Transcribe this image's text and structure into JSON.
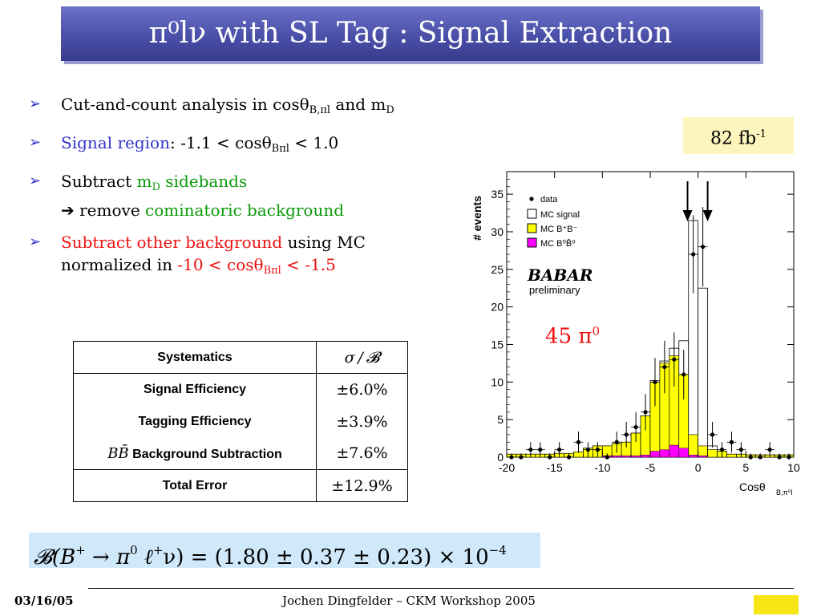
{
  "title": "π⁰lν with SL Tag :  Signal Extraction",
  "bullets": {
    "b1": {
      "t1": "Cut-and-count analysis in cosθ",
      "s1": "B,πl",
      "t2": " and m",
      "s2": "D"
    },
    "b2": {
      "blue": "Signal region",
      "t1": ": -1.1 < cosθ",
      "s1": "Bπl",
      "t2": " < 1.0"
    },
    "b3": {
      "t1": "Subtract ",
      "g1": "m",
      "s1": "D",
      "g2": " sidebands",
      "t2": "➔ remove ",
      "g3": "cominatoric background"
    },
    "b4": {
      "r1": "Subtract other background",
      "t1": " using MC",
      "t2": "normalized in ",
      "r2": "-10 < cosθ",
      "s1": "Bπl",
      "r3": " < -1.5"
    }
  },
  "luminosity": {
    "value": "82 fb",
    "exp": "-1"
  },
  "systematics": {
    "header_label": "Systematics",
    "header_value": "σ / ",
    "header_b": "𝓑",
    "rows": [
      {
        "label": "Signal Efficiency",
        "value": "±6.0%"
      },
      {
        "label": "Tagging Efficiency",
        "value": "±3.9%"
      },
      {
        "label_prefix": "BB̄",
        "label": " Background Subtraction",
        "value": "±7.6%"
      }
    ],
    "total_label": "Total Error",
    "total_value": "±12.9%"
  },
  "formula": {
    "lhs": "𝓑(B",
    "plus1": "+",
    "arrow": " → π",
    "zero": "0",
    "ell": " ℓ",
    "plus2": "+",
    "rest": "ν) = (1.80 ± 0.37 ± 0.23) × 10",
    "exp": "−4"
  },
  "footer": {
    "date": "03/16/05",
    "center": "Jochen Dingfelder –  CKM Workshop 2005"
  },
  "annotation": {
    "count": "45 π",
    "sup": "0"
  },
  "chart_data": {
    "type": "bar",
    "ylabel": "# events",
    "xlabel": "Cosθ",
    "xlabel_sub": "B,π⁰l",
    "xlim": [
      -20,
      10
    ],
    "ylim": [
      0,
      38
    ],
    "xticks": [
      -20,
      -15,
      -10,
      -5,
      0,
      5,
      10
    ],
    "yticks": [
      0,
      5,
      10,
      15,
      20,
      25,
      30,
      35
    ],
    "legend": [
      "data",
      "MC signal",
      "MC B⁺B⁻",
      "MC B⁰B̄⁰"
    ],
    "logo": "BABAR",
    "logo_sub": "preliminary",
    "bins": [
      -20,
      -19,
      -18,
      -17,
      -16,
      -15,
      -14,
      -13,
      -12,
      -11,
      -10,
      -9,
      -8,
      -7,
      -6,
      -5,
      -4,
      -3,
      -2,
      -1,
      0,
      1,
      2,
      3,
      4,
      5,
      6,
      7,
      8,
      9,
      10
    ],
    "mc_bpbm": [
      0.4,
      0.4,
      0.4,
      0.4,
      0.4,
      0.5,
      0.5,
      0.7,
      1.2,
      1.5,
      1.5,
      1.8,
      2.0,
      3.2,
      5.5,
      10.0,
      12.5,
      13.5,
      11.0,
      3.0,
      1.5,
      1.0,
      0.8,
      0.4,
      0.4,
      0.3,
      0.3,
      0.3,
      0.3,
      0.3
    ],
    "mc_b0b0": [
      0,
      0,
      0,
      0,
      0,
      0,
      0,
      0,
      0,
      0,
      0.2,
      0.2,
      0.2,
      0.2,
      0.3,
      0.8,
      1.0,
      1.6,
      1.2,
      0.3,
      0.2,
      0,
      0,
      0,
      0,
      0,
      0,
      0,
      0,
      0
    ],
    "mc_signal": [
      0.4,
      0.4,
      0.4,
      0.4,
      0.4,
      0.5,
      0.5,
      0.7,
      1.2,
      1.5,
      1.5,
      1.8,
      2.0,
      3.2,
      5.5,
      10.2,
      12.8,
      14.5,
      15.5,
      31.5,
      22.5,
      1.5,
      0.8,
      0.4,
      0.4,
      0.3,
      0.3,
      0.3,
      0.3,
      0.3
    ],
    "data_x": [
      -19.5,
      -18.5,
      -17.5,
      -16.5,
      -15.5,
      -14.5,
      -13.5,
      -12.5,
      -11.5,
      -10.5,
      -9.5,
      -8.5,
      -7.5,
      -6.5,
      -5.5,
      -4.5,
      -3.5,
      -2.5,
      -1.5,
      -0.5,
      0.5,
      1.5,
      2.5,
      3.5,
      4.5,
      5.5,
      6.5,
      7.5,
      8.5,
      9.5
    ],
    "data_y": [
      0,
      0,
      1,
      1,
      0,
      1,
      0,
      2,
      1,
      1,
      0,
      2,
      3,
      4,
      6,
      10,
      12,
      13,
      11,
      27,
      28,
      3,
      1,
      2,
      1,
      0,
      0,
      1,
      0,
      0
    ],
    "data_err": [
      0.5,
      0.5,
      1.0,
      1.0,
      0.5,
      1.0,
      0.5,
      1.4,
      1.0,
      1.0,
      0.5,
      1.4,
      1.7,
      2.0,
      2.4,
      3.2,
      3.5,
      3.6,
      3.3,
      5.2,
      5.3,
      1.7,
      1.0,
      1.4,
      1.0,
      0.5,
      0.5,
      1.0,
      0.5,
      0.5
    ],
    "arrows_at": [
      -1.1,
      1.0
    ],
    "colors": {
      "bpbm": "#ffff00",
      "b0b0": "#ff00ff",
      "signal": "#ffffff",
      "data": "#000000"
    }
  }
}
